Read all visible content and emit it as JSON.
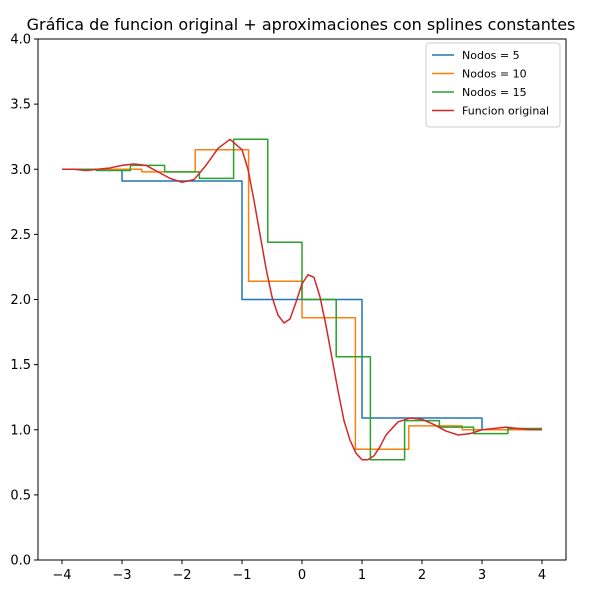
{
  "chart_data": {
    "type": "line",
    "title": "Gráfica de funcion original + aproximaciones con splines constantes",
    "xlabel": "",
    "ylabel": "",
    "xlim": [
      -4.4,
      4.4
    ],
    "ylim": [
      0.0,
      4.0
    ],
    "xticks": [
      -4,
      -3,
      -2,
      -1,
      0,
      1,
      2,
      3,
      4
    ],
    "xtick_labels": [
      "−4",
      "−3",
      "−2",
      "−1",
      "0",
      "1",
      "2",
      "3",
      "4"
    ],
    "yticks": [
      0.0,
      0.5,
      1.0,
      1.5,
      2.0,
      2.5,
      3.0,
      3.5,
      4.0
    ],
    "ytick_labels": [
      "0.0",
      "0.5",
      "1.0",
      "1.5",
      "2.0",
      "2.5",
      "3.0",
      "3.5",
      "4.0"
    ],
    "grid": false,
    "legend_position": "top-right",
    "series": [
      {
        "name": "Nodos = 5",
        "color": "#1f77b4",
        "step": true,
        "x": [
          -4,
          -3,
          -1,
          1,
          3
        ],
        "y": [
          3.0,
          2.91,
          2.0,
          1.09,
          1.0
        ],
        "x_end": 4
      },
      {
        "name": "Nodos = 10",
        "color": "#ff7f0e",
        "step": true,
        "x": [
          -4,
          -3.11,
          -2.67,
          -1.78,
          -0.89,
          0.0,
          0.89,
          1.78,
          2.67,
          3.56
        ],
        "y": [
          3.0,
          3.0,
          2.98,
          3.15,
          2.14,
          1.86,
          0.85,
          1.03,
          1.0,
          1.0
        ],
        "x_end": 4
      },
      {
        "name": "Nodos = 15",
        "color": "#2ca02c",
        "step": true,
        "x": [
          -4,
          -3.43,
          -2.86,
          -2.29,
          -1.71,
          -1.14,
          -0.57,
          0.0,
          0.57,
          1.14,
          1.71,
          2.29,
          2.86,
          3.43
        ],
        "y": [
          3.0,
          2.99,
          3.03,
          2.98,
          2.93,
          3.23,
          2.44,
          2.0,
          1.56,
          0.77,
          1.07,
          1.02,
          0.97,
          1.01
        ],
        "x_end": 4
      },
      {
        "name": "Funcion original",
        "color": "#d62728",
        "step": false,
        "x": [
          -4,
          -3.8,
          -3.6,
          -3.4,
          -3.2,
          -3.0,
          -2.8,
          -2.6,
          -2.4,
          -2.2,
          -2.0,
          -1.8,
          -1.6,
          -1.4,
          -1.2,
          -1.0,
          -0.9,
          -0.8,
          -0.7,
          -0.6,
          -0.5,
          -0.4,
          -0.3,
          -0.2,
          -0.1,
          0.0,
          0.1,
          0.2,
          0.3,
          0.4,
          0.5,
          0.6,
          0.7,
          0.8,
          0.9,
          1.0,
          1.1,
          1.2,
          1.3,
          1.4,
          1.6,
          1.8,
          2.0,
          2.2,
          2.4,
          2.6,
          2.8,
          3.0,
          3.2,
          3.4,
          3.6,
          3.8,
          4.0
        ],
        "y": [
          3.0,
          3.0,
          2.99,
          3.0,
          3.01,
          3.03,
          3.04,
          3.03,
          2.98,
          2.93,
          2.9,
          2.92,
          3.03,
          3.16,
          3.23,
          3.15,
          3.0,
          2.76,
          2.5,
          2.24,
          2.02,
          1.88,
          1.82,
          1.85,
          1.98,
          2.12,
          2.19,
          2.17,
          2.02,
          1.8,
          1.55,
          1.3,
          1.07,
          0.92,
          0.82,
          0.77,
          0.77,
          0.8,
          0.87,
          0.96,
          1.06,
          1.09,
          1.08,
          1.04,
          0.99,
          0.96,
          0.97,
          1.0,
          1.01,
          1.02,
          1.01,
          1.0,
          1.0
        ]
      }
    ]
  }
}
